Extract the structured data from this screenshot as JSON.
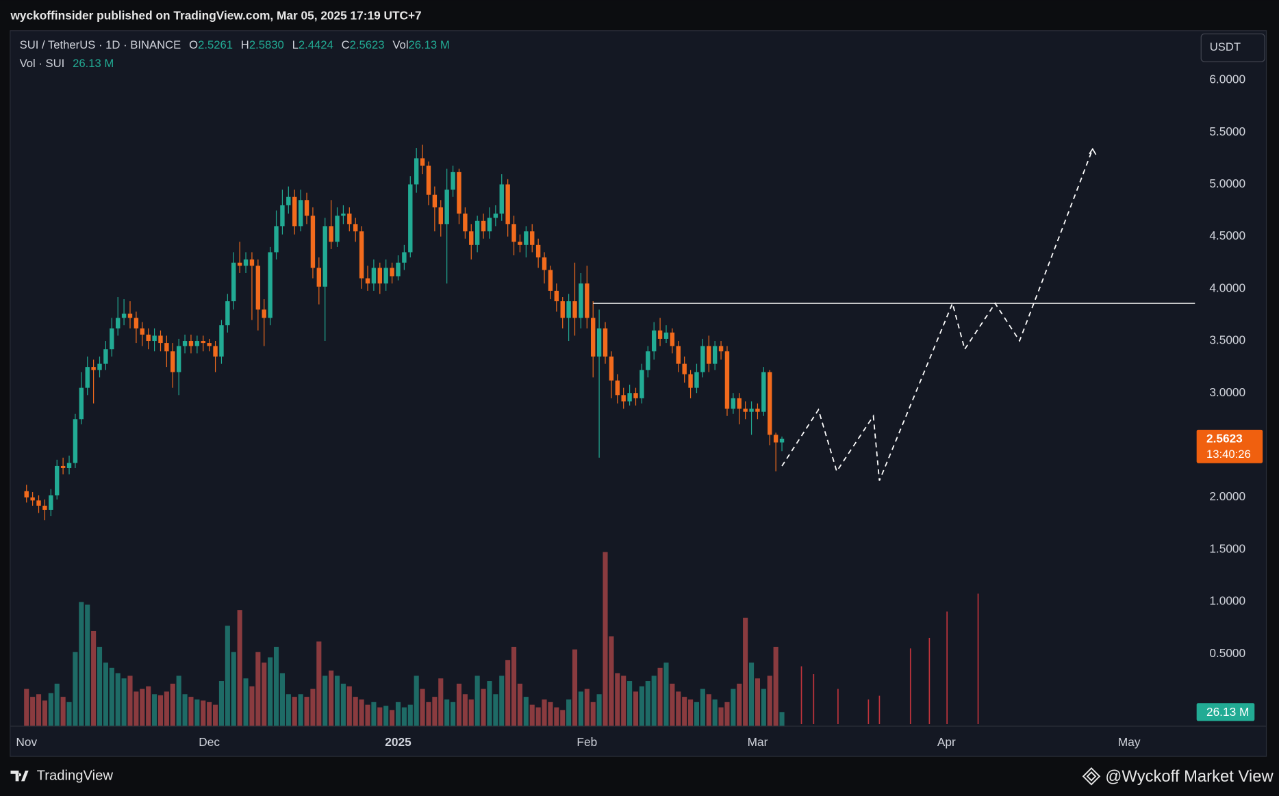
{
  "header": "wyckoffinsider published on TradingView.com, Mar 05, 2025 17:19 UTC+7",
  "footer": {
    "brand": "TradingView",
    "credit": "@Wyckoff Market View"
  },
  "currency_button": "USDT",
  "chart_data": {
    "type": "candlestick",
    "legend": {
      "symbol": "SUI / TetherUS · 1D · BINANCE",
      "items": [
        {
          "key": "O",
          "value": "2.5261"
        },
        {
          "key": "H",
          "value": "2.5830"
        },
        {
          "key": "L",
          "value": "2.4424"
        },
        {
          "key": "C",
          "value": "2.5623"
        },
        {
          "key": "Vol",
          "value": "26.13 M"
        }
      ],
      "volume_title": "Vol · SUI",
      "volume_value": "26.13 M"
    },
    "last_price": {
      "label": "2.5623",
      "countdown": "13:40:26",
      "color": "#f0600f"
    },
    "volume_tag": {
      "label": "26.13 M",
      "color": "#22ab94"
    },
    "up_color": "#22ab94",
    "down_color": "#f26b1d",
    "volume_up_color": "#1e6b66",
    "volume_down_color": "#8a3b3f",
    "x": [
      0,
      1,
      2,
      3,
      4,
      5,
      6,
      7,
      8,
      9,
      10,
      11,
      12,
      13,
      14,
      15,
      16,
      17,
      18,
      19,
      20,
      21,
      22,
      23,
      24,
      25,
      26,
      27,
      28,
      29,
      30,
      31,
      32,
      33,
      34,
      35,
      36,
      37,
      38,
      39,
      40,
      41,
      42,
      43,
      44,
      45,
      46,
      47,
      48,
      49,
      50,
      51,
      52,
      53,
      54,
      55,
      56,
      57,
      58,
      59,
      60,
      61,
      62,
      63,
      64,
      65,
      66,
      67,
      68,
      69,
      70,
      71,
      72,
      73,
      74,
      75,
      76,
      77,
      78,
      79,
      80,
      81,
      82,
      83,
      84,
      85,
      86,
      87,
      88,
      89,
      90,
      91,
      92,
      93,
      94,
      95,
      96,
      97,
      98,
      99,
      100,
      101,
      102,
      103,
      104,
      105,
      106,
      107,
      108,
      109,
      110,
      111,
      112,
      113,
      114,
      115,
      116,
      117,
      118,
      119,
      120,
      121,
      122,
      123,
      124
    ],
    "open": [
      2.06,
      2.0,
      1.97,
      1.92,
      1.88,
      2.02,
      2.3,
      2.28,
      2.33,
      2.75,
      3.05,
      3.25,
      3.22,
      3.28,
      3.42,
      3.62,
      3.72,
      3.76,
      3.72,
      3.62,
      3.56,
      3.5,
      3.55,
      3.48,
      3.4,
      3.2,
      3.45,
      3.5,
      3.45,
      3.5,
      3.48,
      3.45,
      3.35,
      3.65,
      3.88,
      4.25,
      4.22,
      4.28,
      4.22,
      3.8,
      3.72,
      4.35,
      4.6,
      4.8,
      4.88,
      4.6,
      4.85,
      4.7,
      4.2,
      4.02,
      4.6,
      4.45,
      4.7,
      4.72,
      4.62,
      4.55,
      4.1,
      4.05,
      4.2,
      4.05,
      4.2,
      4.12,
      4.25,
      4.35,
      5.0,
      5.25,
      5.18,
      4.9,
      4.78,
      4.62,
      4.95,
      5.12,
      4.72,
      4.55,
      4.42,
      4.65,
      4.55,
      4.68,
      4.72,
      5.0,
      4.62,
      4.45,
      4.42,
      4.55,
      4.42,
      4.3,
      4.18,
      3.98,
      3.88,
      3.72,
      3.88,
      3.72,
      4.05,
      3.72,
      3.35,
      3.62,
      3.35,
      3.12,
      2.98,
      2.92,
      3.0,
      2.95,
      3.22,
      3.4,
      3.6,
      3.52,
      3.58,
      3.45,
      3.28,
      3.18,
      3.05,
      3.2,
      3.45,
      3.28,
      3.45,
      3.4,
      2.85,
      2.95,
      2.85,
      2.82,
      2.85,
      2.82,
      3.2,
      2.6,
      2.5261
    ],
    "high": [
      2.12,
      2.05,
      2.02,
      1.98,
      2.08,
      2.36,
      2.38,
      2.4,
      2.8,
      3.2,
      3.35,
      3.32,
      3.35,
      3.5,
      3.72,
      3.92,
      3.9,
      3.88,
      3.78,
      3.68,
      3.62,
      3.62,
      3.6,
      3.55,
      3.48,
      3.52,
      3.56,
      3.56,
      3.55,
      3.55,
      3.52,
      3.5,
      3.7,
      3.95,
      4.35,
      4.45,
      4.35,
      4.35,
      4.28,
      3.9,
      4.4,
      4.75,
      4.95,
      4.98,
      4.95,
      4.95,
      4.92,
      4.78,
      4.3,
      4.68,
      4.85,
      4.78,
      4.8,
      4.78,
      4.68,
      4.6,
      4.22,
      4.28,
      4.25,
      4.28,
      4.25,
      4.32,
      4.42,
      5.08,
      5.35,
      5.38,
      5.22,
      4.98,
      4.85,
      5.15,
      5.18,
      5.15,
      4.78,
      4.62,
      4.7,
      4.72,
      4.78,
      4.8,
      5.1,
      5.05,
      4.7,
      4.52,
      4.6,
      4.62,
      4.48,
      4.35,
      4.22,
      4.05,
      3.92,
      3.95,
      4.25,
      4.15,
      4.22,
      3.88,
      3.8,
      3.68,
      3.4,
      3.18,
      3.05,
      3.08,
      3.05,
      3.28,
      3.45,
      3.68,
      3.72,
      3.65,
      3.62,
      3.5,
      3.35,
      3.22,
      3.28,
      3.52,
      3.55,
      3.5,
      3.5,
      3.45,
      3.0,
      3.0,
      2.92,
      2.92,
      2.9,
      3.25,
      3.22,
      2.62,
      2.583
    ],
    "low": [
      1.95,
      1.92,
      1.85,
      1.78,
      1.82,
      1.98,
      2.22,
      2.22,
      2.28,
      2.7,
      2.98,
      2.9,
      3.15,
      3.22,
      3.35,
      3.55,
      3.65,
      3.62,
      3.48,
      3.45,
      3.42,
      3.4,
      3.4,
      3.25,
      3.05,
      2.98,
      3.38,
      3.38,
      3.38,
      3.4,
      3.4,
      3.2,
      3.28,
      3.58,
      3.8,
      4.15,
      4.15,
      3.7,
      3.6,
      3.45,
      3.65,
      4.28,
      4.52,
      4.72,
      4.52,
      4.55,
      4.62,
      4.1,
      3.85,
      3.5,
      4.38,
      4.4,
      4.62,
      4.55,
      4.45,
      4.0,
      3.98,
      3.98,
      3.95,
      3.98,
      4.05,
      4.08,
      4.18,
      4.3,
      4.92,
      5.1,
      4.8,
      4.55,
      4.5,
      4.05,
      4.88,
      4.62,
      4.48,
      4.28,
      4.35,
      4.48,
      4.48,
      4.6,
      4.65,
      4.5,
      4.32,
      4.35,
      4.3,
      4.35,
      4.2,
      4.05,
      3.9,
      3.78,
      3.62,
      3.5,
      3.55,
      3.62,
      3.62,
      3.15,
      2.38,
      3.28,
      2.95,
      2.9,
      2.85,
      2.88,
      2.88,
      2.9,
      3.15,
      3.32,
      3.45,
      3.48,
      3.38,
      3.2,
      3.1,
      2.95,
      3.0,
      3.15,
      3.2,
      3.22,
      3.32,
      2.78,
      2.8,
      2.7,
      2.75,
      2.6,
      2.75,
      2.78,
      2.5,
      2.25,
      2.4424
    ],
    "close": [
      2.0,
      1.97,
      1.92,
      1.88,
      2.02,
      2.3,
      2.28,
      2.33,
      2.75,
      3.05,
      3.25,
      3.22,
      3.28,
      3.42,
      3.62,
      3.72,
      3.76,
      3.72,
      3.62,
      3.56,
      3.5,
      3.55,
      3.48,
      3.4,
      3.2,
      3.45,
      3.5,
      3.45,
      3.5,
      3.48,
      3.45,
      3.35,
      3.65,
      3.88,
      4.25,
      4.22,
      4.28,
      4.22,
      3.8,
      3.72,
      4.35,
      4.6,
      4.8,
      4.88,
      4.6,
      4.85,
      4.7,
      4.2,
      4.02,
      4.6,
      4.45,
      4.7,
      4.72,
      4.62,
      4.55,
      4.1,
      4.05,
      4.2,
      4.05,
      4.2,
      4.12,
      4.25,
      4.35,
      5.0,
      5.25,
      5.18,
      4.9,
      4.78,
      4.62,
      4.95,
      5.12,
      4.72,
      4.55,
      4.42,
      4.65,
      4.55,
      4.68,
      4.72,
      5.0,
      4.62,
      4.45,
      4.42,
      4.55,
      4.42,
      4.3,
      4.18,
      3.98,
      3.88,
      3.72,
      3.88,
      3.72,
      4.05,
      3.72,
      3.35,
      3.62,
      3.35,
      3.12,
      2.98,
      2.92,
      3.0,
      2.95,
      3.22,
      3.4,
      3.6,
      3.52,
      3.58,
      3.45,
      3.28,
      3.18,
      3.05,
      3.2,
      3.45,
      3.28,
      3.45,
      3.4,
      2.85,
      2.95,
      2.85,
      2.82,
      2.85,
      2.82,
      3.2,
      2.6,
      2.5261,
      2.5623
    ],
    "volume": [
      70,
      55,
      60,
      48,
      62,
      80,
      55,
      45,
      140,
      235,
      230,
      180,
      150,
      120,
      110,
      100,
      90,
      95,
      65,
      70,
      75,
      60,
      58,
      65,
      80,
      95,
      60,
      55,
      50,
      48,
      45,
      40,
      85,
      190,
      140,
      220,
      90,
      75,
      140,
      120,
      130,
      150,
      100,
      60,
      55,
      60,
      55,
      70,
      160,
      95,
      105,
      95,
      80,
      75,
      55,
      50,
      40,
      45,
      35,
      38,
      30,
      45,
      35,
      40,
      95,
      70,
      45,
      55,
      90,
      50,
      45,
      80,
      60,
      50,
      95,
      70,
      85,
      60,
      95,
      125,
      150,
      80,
      55,
      40,
      35,
      50,
      45,
      35,
      30,
      50,
      145,
      65,
      70,
      45,
      60,
      330,
      170,
      100,
      95,
      85,
      65,
      75,
      85,
      95,
      110,
      120,
      80,
      65,
      55,
      50,
      45,
      70,
      60,
      50,
      35,
      45,
      70,
      80,
      205,
      120,
      90,
      70,
      95,
      150,
      26.13
    ],
    "xlim": [
      -2.68,
      191.8
    ],
    "xticks": [
      {
        "value": 0,
        "label": "Nov"
      },
      {
        "value": 30,
        "label": "Dec"
      },
      {
        "value": 61,
        "label": "2025"
      },
      {
        "value": 92,
        "label": "Feb"
      },
      {
        "value": 120,
        "label": "Mar"
      },
      {
        "value": 151,
        "label": "Apr"
      },
      {
        "value": 181,
        "label": "May"
      }
    ],
    "ylim": [
      -0.19,
      6.47
    ],
    "yticks": [
      {
        "value": 0.5,
        "label": "0.5000"
      },
      {
        "value": 1,
        "label": "1.0000"
      },
      {
        "value": 1.5,
        "label": "1.5000"
      },
      {
        "value": 2,
        "label": "2.0000"
      },
      {
        "value": 2.5,
        "label": "2.5000"
      },
      {
        "value": 3,
        "label": "3.0000"
      },
      {
        "value": 3.5,
        "label": "3.5000"
      },
      {
        "value": 4,
        "label": "4.0000"
      },
      {
        "value": 4.5,
        "label": "4.5000"
      },
      {
        "value": 5,
        "label": "5.0000"
      },
      {
        "value": 5.5,
        "label": "5.5000"
      },
      {
        "value": 6,
        "label": "6.0000"
      }
    ],
    "volume_ylim": [
      0,
      350
    ],
    "grid": false,
    "level": {
      "value": 3.86,
      "from": 93,
      "color": "#e6e6e6"
    },
    "projection": {
      "x": [
        124,
        130,
        133,
        139,
        140,
        152,
        154,
        159,
        163,
        175
      ],
      "values": [
        2.3,
        2.84,
        2.25,
        2.78,
        2.16,
        3.86,
        3.42,
        3.86,
        3.5,
        5.34
      ],
      "color": "#ffffff"
    },
    "volume_annotations": {
      "x": [
        127.2,
        129.2,
        133.2,
        138.2,
        140,
        145.1,
        148.2,
        151.1,
        156.2
      ],
      "values": [
        113,
        98,
        70,
        50,
        57,
        147,
        167,
        217,
        251
      ],
      "color": "#c2343c"
    }
  }
}
